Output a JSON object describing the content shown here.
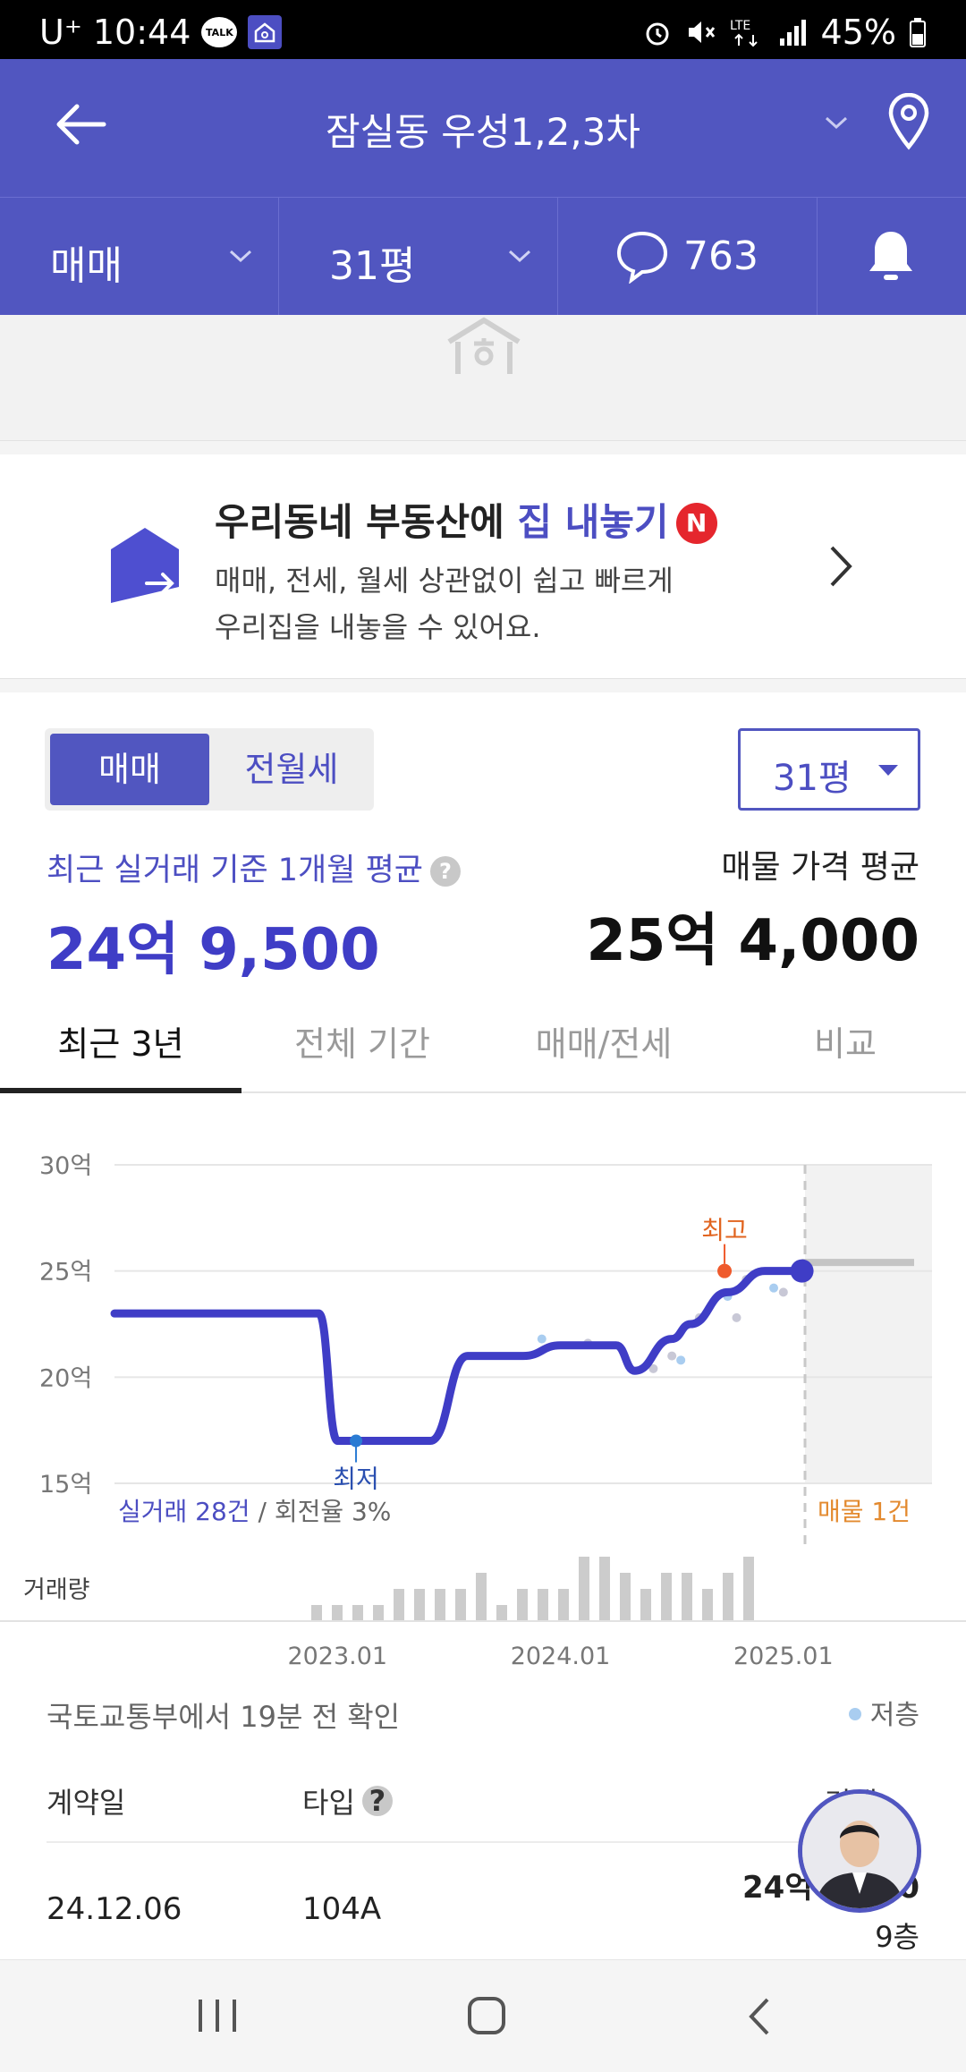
{
  "status_bar": {
    "carrier": "U⁺",
    "time": "10:44",
    "talk_badge": "TALK",
    "battery": "45%",
    "icons": [
      "alarm-icon",
      "mute-icon",
      "lte-icon",
      "signal-icon",
      "battery-icon"
    ]
  },
  "header": {
    "title": "잠실동 우성1,2,3차"
  },
  "filter_bar": {
    "deal_type": "매매",
    "size": "31평",
    "comment_count": "763"
  },
  "promo": {
    "title_prefix": "우리동네 부동산에 ",
    "title_highlight": "집 내놓기",
    "badge": "N",
    "desc_line1": "매매, 전세, 월세 상관없이 쉽고 빠르게",
    "desc_line2": "우리집을 내놓을 수 있어요."
  },
  "segment": {
    "active": "매매",
    "inactive": "전월세"
  },
  "size_dropdown": "31평",
  "summary": {
    "recent_label": "최근 실거래 기준 1개월 평균",
    "recent_value": "24억 9,500",
    "ask_label": "매물 가격 평균",
    "ask_value": "25억 4,000"
  },
  "tabs": [
    "최근 3년",
    "전체 기간",
    "매매/전세",
    "비교"
  ],
  "chart_data": {
    "type": "line",
    "ylabels": [
      "30억",
      "25억",
      "20억",
      "15억"
    ],
    "ylim": [
      15,
      30
    ],
    "xlabels": [
      "2023.01",
      "2024.01",
      "2025.01"
    ],
    "series": [
      {
        "x": [
          "2022.01",
          "2022.12",
          "2023.01",
          "2023.06",
          "2023.08",
          "2023.11",
          "2024.01",
          "2024.04",
          "2024.05",
          "2024.07",
          "2024.08",
          "2024.10",
          "2024.12",
          "2025.02"
        ],
        "values": [
          23.0,
          23.0,
          17.0,
          17.0,
          21.0,
          21.0,
          21.5,
          21.5,
          20.3,
          21.8,
          22.5,
          24.0,
          25.0,
          25.0
        ]
      }
    ],
    "asking_price_line": 25.4,
    "annotations": {
      "high_label": "최고",
      "low_label": "최저",
      "trade_prefix": "실거래 28건",
      "trade_suffix": " / 회전율 3%",
      "listing_label": "매물 1건",
      "volume_label": "거래량"
    },
    "volume_bars": [
      1,
      1,
      1,
      1,
      2,
      2,
      2,
      2,
      3,
      1,
      2,
      2,
      2,
      4,
      4,
      3,
      2,
      3,
      3,
      2,
      3,
      4
    ]
  },
  "data_note": "국토교통부에서 19분 전 확인",
  "legend_low_floor": "저층",
  "table": {
    "col_date": "계약일",
    "col_type": "타입",
    "col_price": "거래",
    "row_date": "24.12.06",
    "row_type": "104A",
    "row_price": "24억 9,500",
    "row_floor": "9층"
  }
}
